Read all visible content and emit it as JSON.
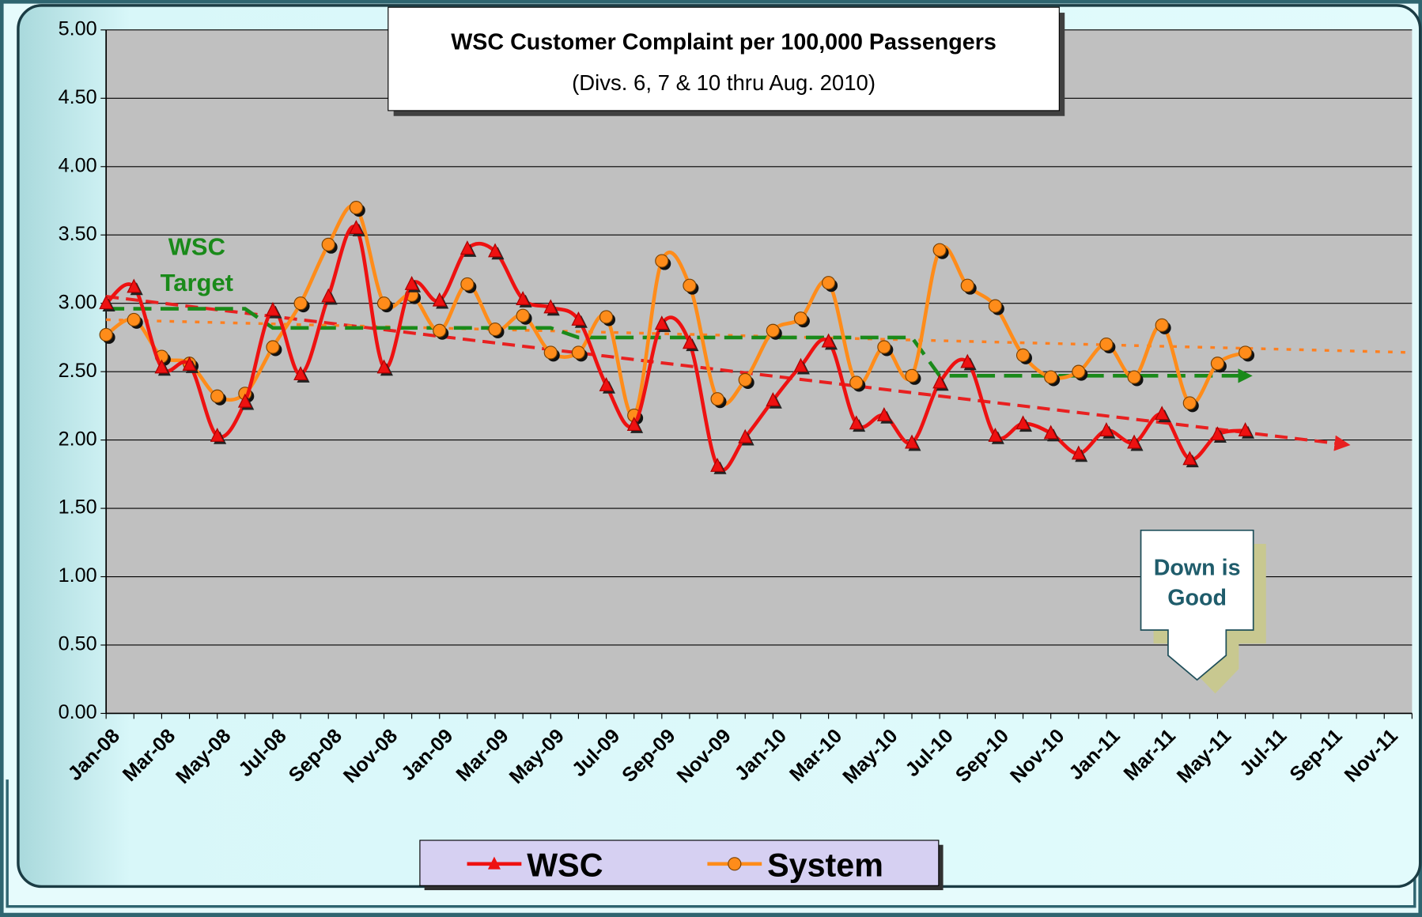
{
  "chart_data": {
    "type": "line",
    "title": "WSC Customer Complaint per 100,000 Passengers",
    "subtitle": "(Divs. 6, 7 & 10 thru Aug. 2010)",
    "categories": [
      "Jan-08",
      null,
      "Mar-08",
      null,
      "May-08",
      null,
      "Jul-08",
      null,
      "Sep-08",
      null,
      "Nov-08",
      null,
      "Jan-09",
      null,
      "Mar-09",
      null,
      "May-09",
      null,
      "Jul-09",
      null,
      "Sep-09",
      null,
      "Nov-09",
      null,
      "Jan-10",
      null,
      "Mar-10",
      null,
      "May-10",
      null,
      "Jul-10",
      null,
      "Sep-10",
      null,
      "Nov-10",
      null,
      "Jan-11",
      null,
      "Mar-11",
      null,
      "May-11",
      null,
      "Jul-11",
      null,
      "Sep-11",
      null,
      "Nov-11",
      null
    ],
    "series": [
      {
        "name": "WSC",
        "color": "#ee1111",
        "marker": "triangle",
        "values": [
          3.0,
          3.12,
          2.53,
          2.55,
          2.03,
          2.28,
          2.95,
          2.48,
          3.05,
          3.55,
          2.53,
          3.14,
          3.02,
          3.4,
          3.38,
          3.03,
          2.97,
          2.88,
          2.4,
          2.11,
          2.85,
          2.71,
          1.81,
          2.02,
          2.29,
          2.54,
          2.72,
          2.12,
          2.18,
          1.98,
          2.42,
          2.57,
          2.03,
          2.12,
          2.05,
          1.9,
          2.07,
          1.98,
          2.19,
          1.86,
          2.04,
          2.07,
          null,
          null,
          null,
          null,
          null,
          null
        ]
      },
      {
        "name": "System",
        "color": "#ff8c1a",
        "marker": "circle",
        "values": [
          2.77,
          2.88,
          2.61,
          2.56,
          2.32,
          2.34,
          2.68,
          3.0,
          3.43,
          3.7,
          3.0,
          3.06,
          2.8,
          3.14,
          2.81,
          2.91,
          2.64,
          2.64,
          2.9,
          2.18,
          3.31,
          3.13,
          2.3,
          2.44,
          2.8,
          2.89,
          3.15,
          2.42,
          2.68,
          2.47,
          3.39,
          3.13,
          2.98,
          2.62,
          2.46,
          2.5,
          2.7,
          2.46,
          2.84,
          2.27,
          2.56,
          2.64,
          null,
          null,
          null,
          null,
          null,
          null
        ]
      }
    ],
    "target": {
      "label": [
        "WSC",
        "Target"
      ],
      "color": "#1a8a1a",
      "values": [
        2.96,
        2.96,
        2.96,
        2.96,
        2.96,
        2.96,
        2.82,
        2.82,
        2.82,
        2.82,
        2.82,
        2.82,
        2.82,
        2.82,
        2.82,
        2.82,
        2.82,
        2.75,
        2.75,
        2.75,
        2.75,
        2.75,
        2.75,
        2.75,
        2.75,
        2.75,
        2.75,
        2.75,
        2.75,
        2.75,
        2.47,
        2.47,
        2.47,
        2.47,
        2.47,
        2.47,
        2.47,
        2.47,
        2.47,
        2.47,
        2.47,
        2.47,
        null,
        null,
        null,
        null,
        null,
        null
      ]
    },
    "trends": [
      {
        "color": "#e82020",
        "x": [
          0,
          44.5
        ],
        "values": [
          3.05,
          1.97
        ]
      },
      {
        "color": "#ff8020",
        "x": [
          0,
          47
        ],
        "values": [
          2.88,
          2.64
        ]
      }
    ],
    "annotation": [
      "Down is",
      "Good"
    ],
    "ylim": [
      0,
      5
    ],
    "yticks": [
      {
        "value": 0,
        "label": "0.00"
      },
      {
        "value": 0.5,
        "label": "0.50"
      },
      {
        "value": 1,
        "label": "1.00"
      },
      {
        "value": 1.5,
        "label": "1.50"
      },
      {
        "value": 2,
        "label": "2.00"
      },
      {
        "value": 2.5,
        "label": "2.50"
      },
      {
        "value": 3,
        "label": "3.00"
      },
      {
        "value": 3.5,
        "label": "3.50"
      },
      {
        "value": 4,
        "label": "4.00"
      },
      {
        "value": 4.5,
        "label": "4.50"
      },
      {
        "value": 5,
        "label": "5.00"
      }
    ],
    "grid": true,
    "legend": "bottom"
  }
}
